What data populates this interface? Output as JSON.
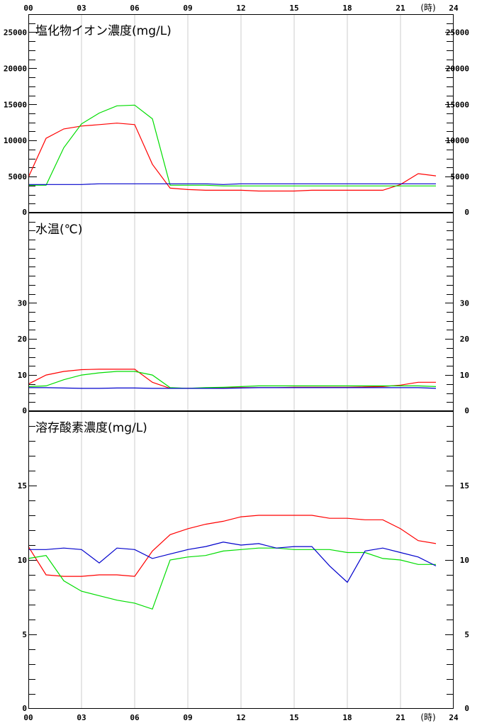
{
  "x_axis": {
    "ticks": [
      0,
      3,
      6,
      9,
      12,
      15,
      18,
      21,
      24
    ],
    "tick_labels": [
      "00",
      "03",
      "06",
      "09",
      "12",
      "15",
      "18",
      "21",
      "24"
    ],
    "unit_label": "(時)"
  },
  "colors": {
    "red": "#ff0000",
    "green": "#00dd00",
    "blue": "#0000cc",
    "grid": "#cccccc",
    "axis": "#000000"
  },
  "chart_data": [
    {
      "type": "line",
      "title": "塩化物イオン濃度(mg/L)",
      "xlim": [
        0,
        24
      ],
      "ylim": [
        0,
        27500
      ],
      "yticks": [
        0,
        5000,
        10000,
        15000,
        20000,
        25000
      ],
      "ytick_labels": [
        "0",
        "5000",
        "10000",
        "15000",
        "20000",
        "25000"
      ],
      "x": [
        0,
        1,
        2,
        3,
        4,
        5,
        6,
        7,
        8,
        9,
        10,
        11,
        12,
        13,
        14,
        15,
        16,
        17,
        18,
        19,
        20,
        21,
        22,
        23
      ],
      "series": [
        {
          "color": "red",
          "values": [
            4900,
            10300,
            11600,
            12000,
            12200,
            12400,
            12200,
            6700,
            3400,
            3200,
            3100,
            3100,
            3100,
            3000,
            3000,
            3000,
            3100,
            3100,
            3100,
            3100,
            3100,
            3900,
            5400,
            5100
          ]
        },
        {
          "color": "green",
          "values": [
            3800,
            3800,
            9000,
            12300,
            13800,
            14800,
            14900,
            13000,
            3800,
            3800,
            3800,
            3700,
            3700,
            3700,
            3700,
            3700,
            3700,
            3700,
            3700,
            3700,
            3700,
            3700,
            3700,
            3700
          ]
        },
        {
          "color": "blue",
          "values": [
            3900,
            3900,
            3900,
            3900,
            4000,
            4000,
            4000,
            4000,
            4000,
            4000,
            4000,
            3900,
            4000,
            4000,
            4000,
            4000,
            4000,
            4000,
            4000,
            4000,
            4000,
            4000,
            4000,
            4000
          ]
        }
      ]
    },
    {
      "type": "line",
      "title": "水温(℃)",
      "xlim": [
        0,
        24
      ],
      "ylim": [
        0,
        55
      ],
      "yticks": [
        0,
        10,
        20,
        30
      ],
      "ytick_labels": [
        "0",
        "10",
        "20",
        "30"
      ],
      "x": [
        0,
        1,
        2,
        3,
        4,
        5,
        6,
        7,
        8,
        9,
        10,
        11,
        12,
        13,
        14,
        15,
        16,
        17,
        18,
        19,
        20,
        21,
        22,
        23
      ],
      "series": [
        {
          "color": "red",
          "values": [
            7.5,
            10.0,
            11.0,
            11.5,
            11.6,
            11.6,
            11.6,
            8.0,
            6.3,
            6.3,
            6.3,
            6.4,
            6.5,
            6.5,
            6.5,
            6.6,
            6.6,
            6.6,
            6.6,
            6.7,
            6.8,
            7.2,
            8.0,
            8.0
          ]
        },
        {
          "color": "green",
          "values": [
            6.8,
            7.0,
            8.7,
            10.0,
            10.6,
            11.0,
            11.0,
            10.0,
            6.5,
            6.3,
            6.5,
            6.6,
            6.8,
            7.0,
            7.0,
            7.0,
            7.0,
            7.0,
            7.0,
            7.0,
            7.0,
            7.0,
            7.0,
            6.8
          ]
        },
        {
          "color": "blue",
          "values": [
            6.5,
            6.5,
            6.4,
            6.3,
            6.3,
            6.4,
            6.4,
            6.3,
            6.3,
            6.3,
            6.3,
            6.3,
            6.4,
            6.5,
            6.5,
            6.5,
            6.5,
            6.5,
            6.5,
            6.5,
            6.5,
            6.5,
            6.5,
            6.3
          ]
        }
      ]
    },
    {
      "type": "line",
      "title": "溶存酸素濃度(mg/L)",
      "xlim": [
        0,
        24
      ],
      "ylim": [
        0,
        20
      ],
      "yticks": [
        0,
        5,
        10,
        15
      ],
      "ytick_labels": [
        "0",
        "5",
        "10",
        "15"
      ],
      "x": [
        0,
        1,
        2,
        3,
        4,
        5,
        6,
        7,
        8,
        9,
        10,
        11,
        12,
        13,
        14,
        15,
        16,
        17,
        18,
        19,
        20,
        21,
        22,
        23
      ],
      "series": [
        {
          "color": "red",
          "values": [
            10.9,
            9.0,
            8.9,
            8.9,
            9.0,
            9.0,
            8.9,
            10.6,
            11.7,
            12.1,
            12.4,
            12.6,
            12.9,
            13.0,
            13.0,
            13.0,
            13.0,
            12.8,
            12.8,
            12.7,
            12.7,
            12.1,
            11.3,
            11.1
          ]
        },
        {
          "color": "green",
          "values": [
            10.1,
            10.3,
            8.6,
            7.9,
            7.6,
            7.3,
            7.1,
            6.7,
            10.0,
            10.2,
            10.3,
            10.6,
            10.7,
            10.8,
            10.8,
            10.7,
            10.7,
            10.7,
            10.5,
            10.5,
            10.1,
            10.0,
            9.7,
            9.7
          ]
        },
        {
          "color": "blue",
          "values": [
            10.7,
            10.7,
            10.8,
            10.7,
            9.8,
            10.8,
            10.7,
            10.1,
            10.4,
            10.7,
            10.9,
            11.2,
            11.0,
            11.1,
            10.8,
            10.9,
            10.9,
            9.6,
            8.5,
            10.6,
            10.8,
            10.5,
            10.2,
            9.6
          ]
        }
      ]
    }
  ]
}
